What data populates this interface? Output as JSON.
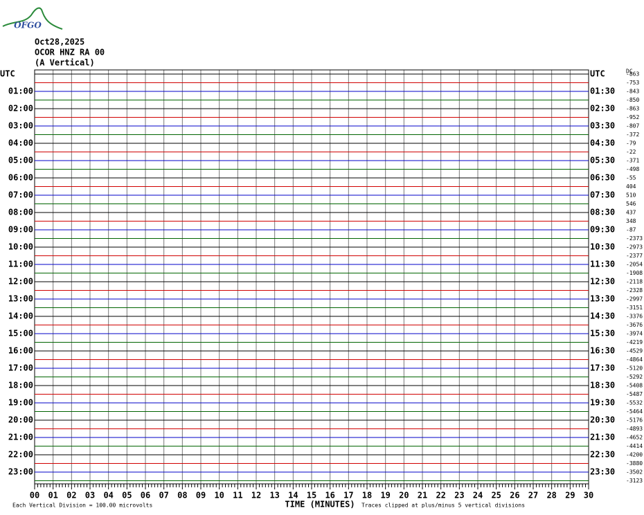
{
  "header": {
    "logo": "OFGO",
    "date": "Oct28,2025",
    "station": "OCOR HNZ RA 00",
    "component": "(A Vertical)",
    "dc": "DC"
  },
  "left_labels": [
    "UTC",
    "01:00",
    "02:00",
    "03:00",
    "04:00",
    "05:00",
    "06:00",
    "07:00",
    "08:00",
    "09:00",
    "10:00",
    "11:00",
    "12:00",
    "13:00",
    "14:00",
    "15:00",
    "16:00",
    "17:00",
    "18:00",
    "19:00",
    "20:00",
    "21:00",
    "22:00",
    "23:00"
  ],
  "right_labels": [
    "UTC",
    "01:30",
    "02:30",
    "03:30",
    "04:30",
    "05:30",
    "06:30",
    "07:30",
    "08:30",
    "09:30",
    "10:30",
    "11:30",
    "12:30",
    "13:30",
    "14:30",
    "15:30",
    "16:30",
    "17:30",
    "18:30",
    "19:30",
    "20:30",
    "21:30",
    "22:30",
    "23:30"
  ],
  "dc_values": [
    -863,
    -753,
    -843,
    -850,
    -863,
    -952,
    -807,
    -372,
    -79,
    -22,
    -371,
    -498,
    -55,
    404,
    510,
    546,
    437,
    348,
    -87,
    -2373,
    -2973,
    -2377,
    -2054,
    -1908,
    -2118,
    -2328,
    -2997,
    -3151,
    -3376,
    -3676,
    -3974,
    -4219,
    -4529,
    -4864,
    -5120,
    -5292,
    -5408,
    -5487,
    -5532,
    -5464,
    -5176,
    -4893,
    -4652,
    -4414,
    -4200,
    -3880,
    -3502,
    -3123
  ],
  "x_labels": [
    "00",
    "01",
    "02",
    "03",
    "04",
    "05",
    "06",
    "07",
    "08",
    "09",
    "10",
    "11",
    "12",
    "13",
    "14",
    "15",
    "16",
    "17",
    "18",
    "19",
    "20",
    "21",
    "22",
    "23",
    "24",
    "25",
    "26",
    "27",
    "28",
    "29",
    "30"
  ],
  "footer": {
    "division": "Each Vertical Division =  100.00 microvolts",
    "axis_title": "TIME (MINUTES)",
    "clip_note": "Traces clipped at plus/minus 5 vertical divisions"
  }
}
